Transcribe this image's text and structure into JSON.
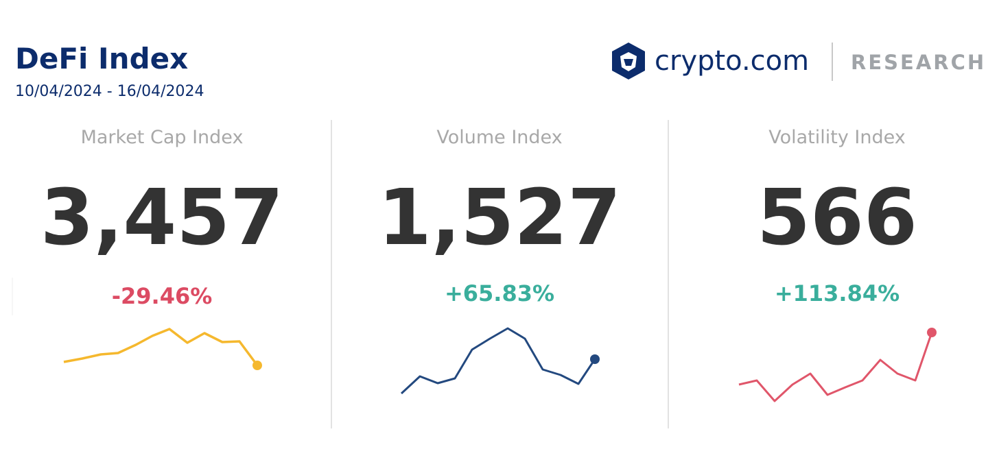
{
  "header": {
    "title": "DeFi Index",
    "date_range": "10/04/2024 - 16/04/2024"
  },
  "logo": {
    "brand": "crypto.com",
    "section": "RESEARCH"
  },
  "panels": [
    {
      "label": "Market Cap Index",
      "value": "3,457",
      "change": "-29.46%"
    },
    {
      "label": "Volume Index",
      "value": "1,527",
      "change": "+65.83%"
    },
    {
      "label": "Volatility Index",
      "value": "566",
      "change": "+113.84%"
    }
  ]
}
